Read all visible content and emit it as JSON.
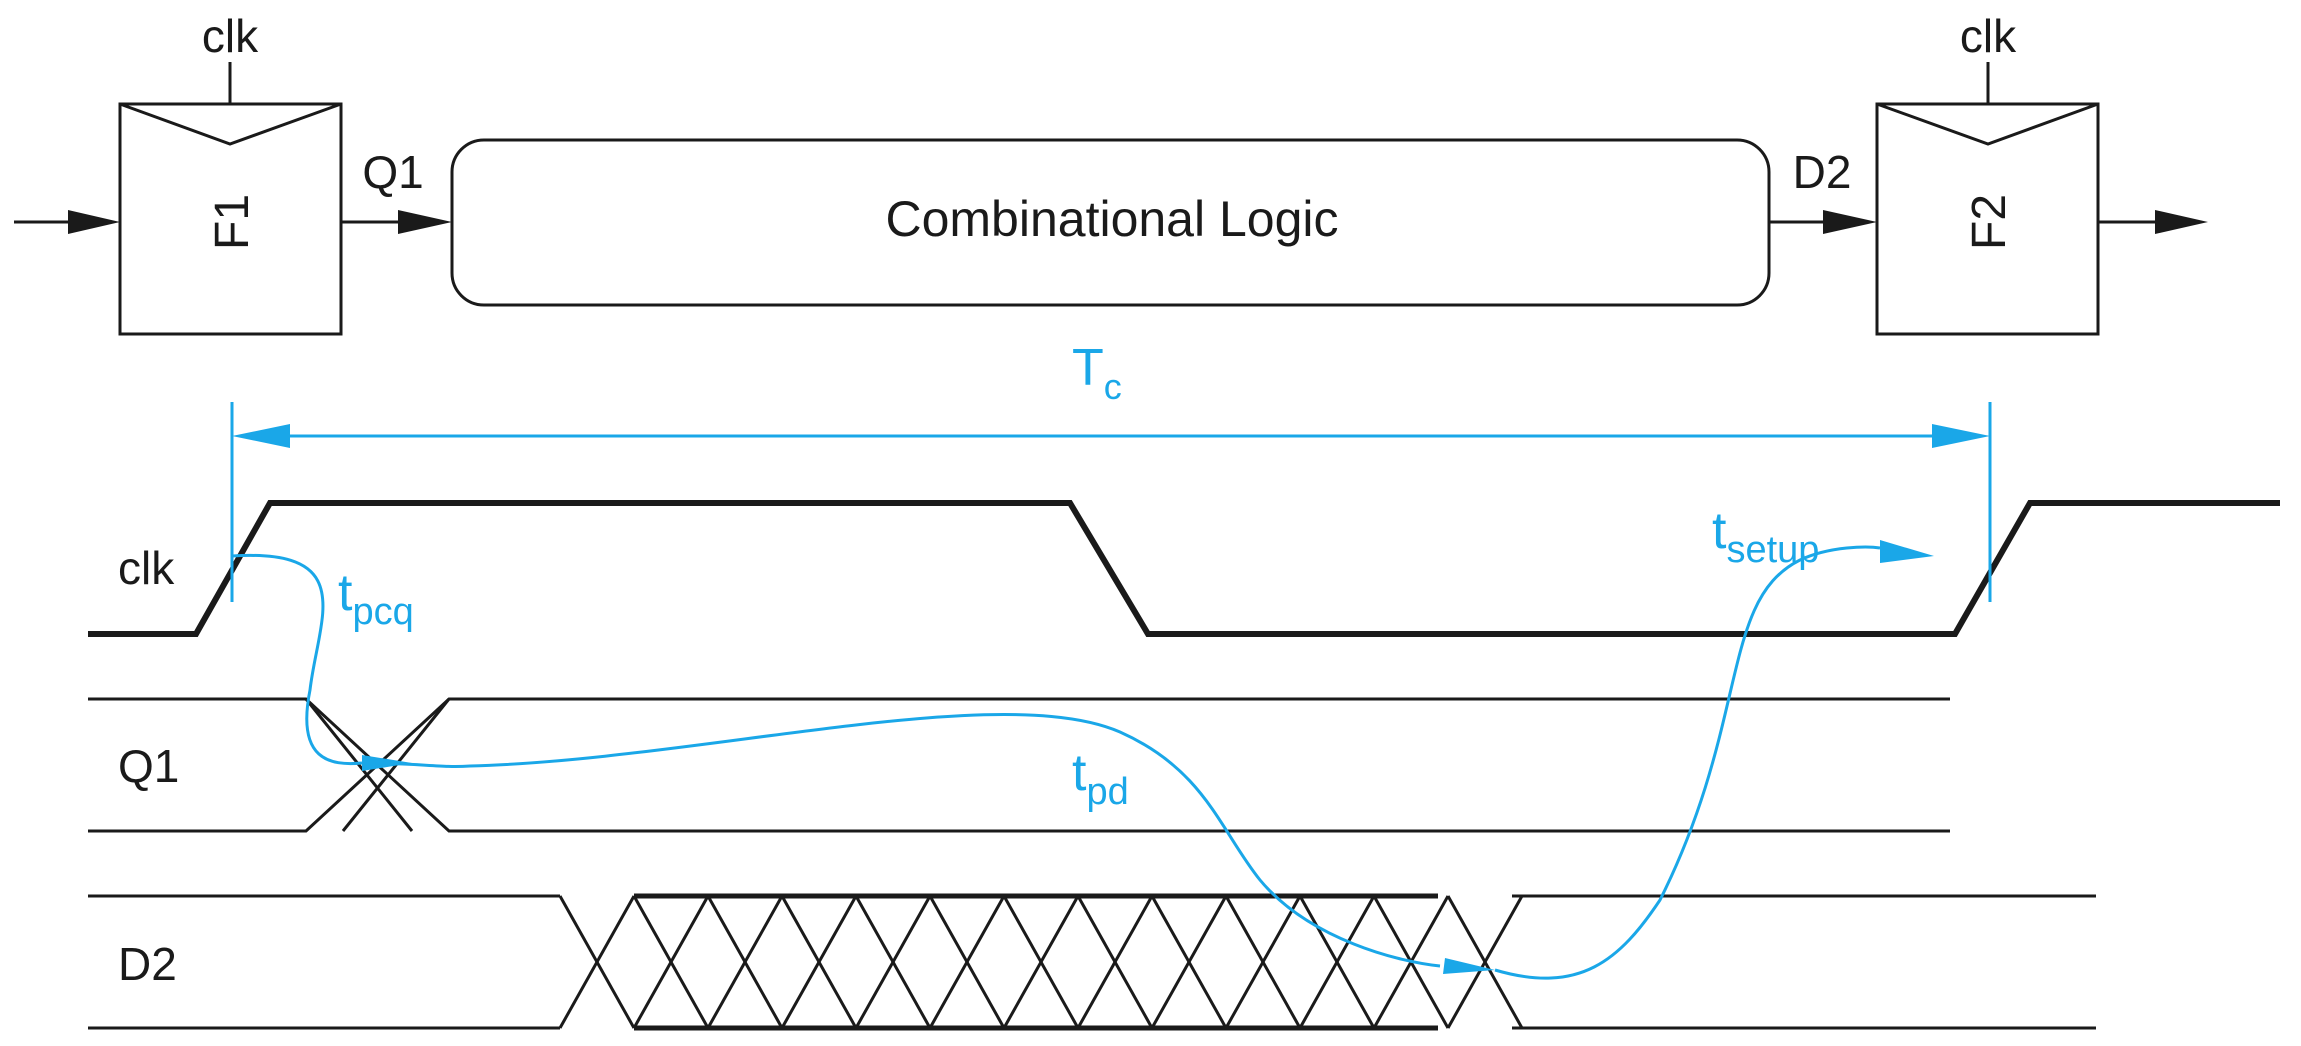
{
  "circuit": {
    "flipflop1": {
      "label": "F1",
      "clock": "clk"
    },
    "flipflop2": {
      "label": "F2",
      "clock": "clk"
    },
    "logic_block": "Combinational Logic",
    "wire_q1": "Q1",
    "wire_d2": "D2"
  },
  "timing": {
    "period": {
      "base": "T",
      "sub": "c"
    },
    "signals": [
      "clk",
      "Q1",
      "D2"
    ],
    "delays": {
      "pcq": {
        "base": "t",
        "sub": "pcq"
      },
      "pd": {
        "base": "t",
        "sub": "pd"
      },
      "setup": {
        "base": "t",
        "sub": "setup"
      }
    }
  },
  "colors": {
    "ink": "#1a1a1a",
    "annotation": "#1aa7e8"
  }
}
